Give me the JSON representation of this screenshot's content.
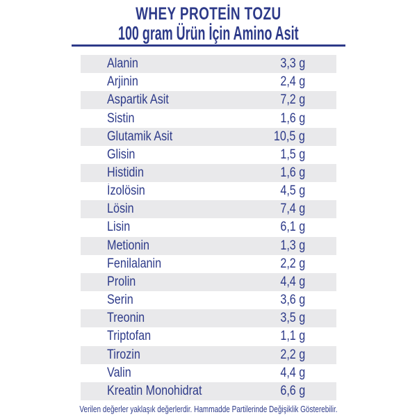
{
  "page": {
    "title": "WHEY PROTEİN TOZU",
    "subtitle": "100 gram Ürün İçin Amino Asit",
    "footnote": "Verilen değerler yaklaşık değerlerdir. Hammadde Partilerinde Değişiklik Gösterebilir."
  },
  "table": {
    "unit": "g",
    "rows": [
      {
        "label": "Alanin",
        "value": "3,3 g"
      },
      {
        "label": "Arjinin",
        "value": "2,4 g"
      },
      {
        "label": "Aspartik Asit",
        "value": "7,2 g"
      },
      {
        "label": "Sistin",
        "value": "1,6 g"
      },
      {
        "label": "Glutamik Asit",
        "value": "10,5 g"
      },
      {
        "label": "Glisin",
        "value": "1,5 g"
      },
      {
        "label": "Histidin",
        "value": "1,6 g"
      },
      {
        "label": "İzolösin",
        "value": "4,5 g"
      },
      {
        "label": "Lösin",
        "value": "7,4 g"
      },
      {
        "label": "Lisin",
        "value": "6,1 g"
      },
      {
        "label": "Metionin",
        "value": "1,3 g"
      },
      {
        "label": "Fenilalanin",
        "value": "2,2 g"
      },
      {
        "label": "Prolin",
        "value": "4,4 g"
      },
      {
        "label": "Serin",
        "value": "3,6 g"
      },
      {
        "label": "Treonin",
        "value": "3,5 g"
      },
      {
        "label": "Triptofan",
        "value": "1,1 g"
      },
      {
        "label": "Tirozin",
        "value": "2,2 g"
      },
      {
        "label": "Valin",
        "value": "4,4 g"
      },
      {
        "label": "Kreatin Monohidrat",
        "value": "6,6 g"
      }
    ]
  },
  "colors": {
    "text_navy": "#2d3a89",
    "row_alt_gray": "#e9e9eb"
  }
}
